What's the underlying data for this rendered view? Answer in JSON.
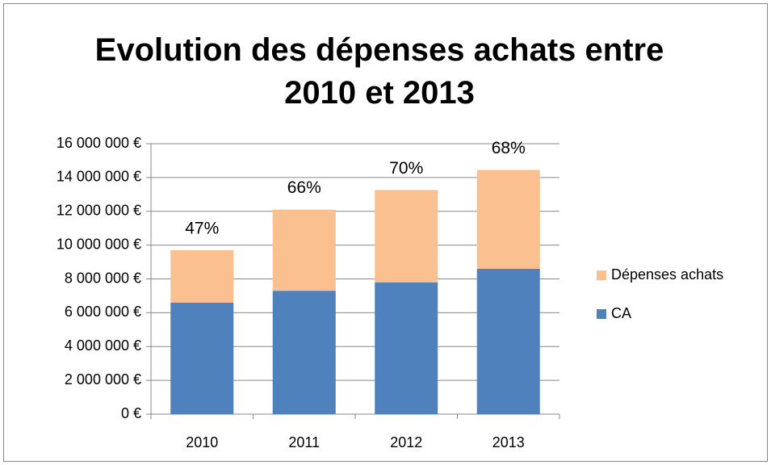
{
  "chart_data": {
    "type": "stacked_bar",
    "title": "Evolution des dépenses achats entre 2010 et 2013",
    "categories": [
      "2010",
      "2011",
      "2012",
      "2013"
    ],
    "series": [
      {
        "name": "CA",
        "color": "#4f81bd",
        "values": [
          6600000,
          7300000,
          7800000,
          8600000
        ]
      },
      {
        "name": "Dépenses achats",
        "color": "#fac090",
        "values": [
          3100000,
          4800000,
          5460000,
          5850000
        ]
      }
    ],
    "annotations": [
      "47%",
      "66%",
      "70%",
      "68%"
    ],
    "ylim": [
      0,
      16000000
    ],
    "yticks": [
      {
        "value": 0,
        "label": "0 €"
      },
      {
        "value": 2000000,
        "label": "2 000 000 €"
      },
      {
        "value": 4000000,
        "label": "4 000 000 €"
      },
      {
        "value": 6000000,
        "label": "6 000 000 €"
      },
      {
        "value": 8000000,
        "label": "8 000 000 €"
      },
      {
        "value": 10000000,
        "label": "10 000 000 €"
      },
      {
        "value": 12000000,
        "label": "12 000 000 €"
      },
      {
        "value": 14000000,
        "label": "14 000 000 €"
      },
      {
        "value": 16000000,
        "label": "16 000 000 €"
      }
    ],
    "grid": true,
    "legend": "right"
  }
}
